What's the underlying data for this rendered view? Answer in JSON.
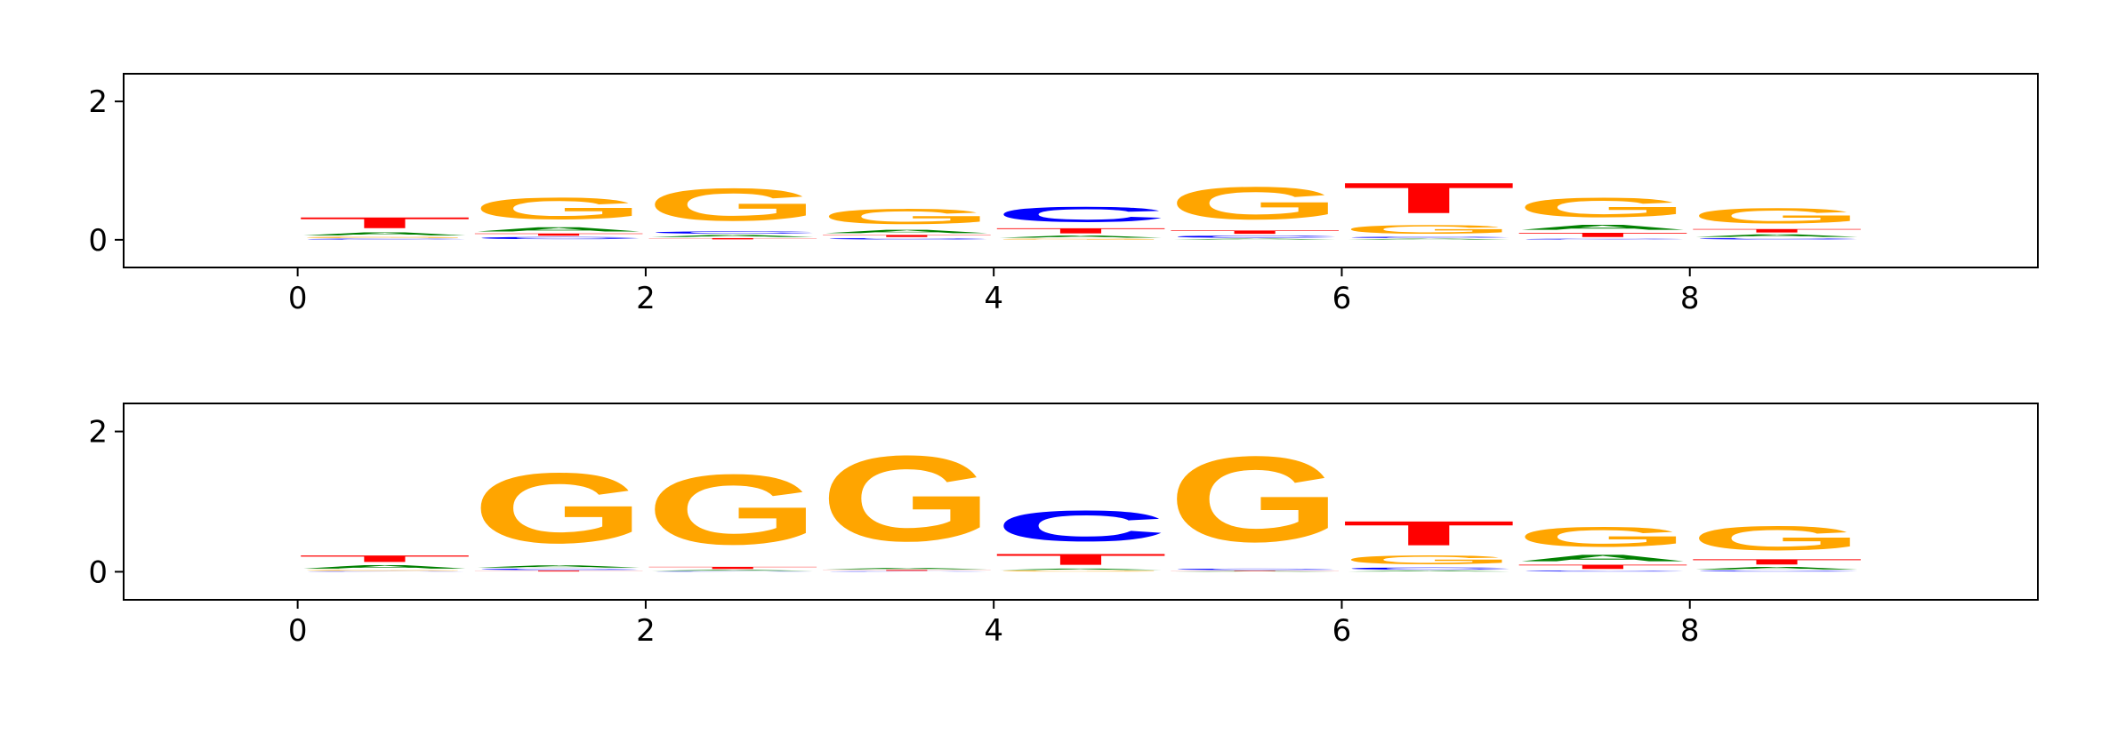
{
  "chart_data": [
    {
      "type": "logo",
      "x": [
        0,
        1,
        2,
        3,
        4,
        5,
        6,
        7,
        8
      ],
      "series": [
        {
          "name": "A",
          "color": "#008000",
          "values": [
            0.07,
            0.1,
            0.05,
            0.08,
            0.05,
            0.02,
            0.02,
            0.12,
            0.06
          ]
        },
        {
          "name": "C",
          "color": "#0000ff",
          "values": [
            0.02,
            0.05,
            0.05,
            0.03,
            0.35,
            0.05,
            0.03,
            0.02,
            0.03
          ]
        },
        {
          "name": "G",
          "color": "#ffa500",
          "values": [
            0.03,
            0.5,
            0.75,
            0.35,
            0.02,
            0.75,
            0.2,
            0.45,
            0.35
          ]
        },
        {
          "name": "T",
          "color": "#ff0000",
          "values": [
            0.25,
            0.05,
            0.03,
            0.05,
            0.12,
            0.08,
            0.7,
            0.1,
            0.08
          ]
        }
      ],
      "xlim": [
        -1,
        10
      ],
      "ylim": [
        -0.4,
        2.4
      ],
      "xticks": [
        0,
        2,
        4,
        6,
        8
      ],
      "yticks": [
        0,
        2
      ]
    },
    {
      "type": "logo",
      "x": [
        0,
        1,
        2,
        3,
        4,
        5,
        6,
        7,
        8
      ],
      "series": [
        {
          "name": "A",
          "color": "#008000",
          "values": [
            0.08,
            0.05,
            0.02,
            0.03,
            0.03,
            0.01,
            0.02,
            0.15,
            0.06
          ]
        },
        {
          "name": "C",
          "color": "#0000ff",
          "values": [
            0.01,
            0.03,
            0.01,
            0.01,
            0.7,
            0.03,
            0.05,
            0.02,
            0.02
          ]
        },
        {
          "name": "G",
          "color": "#ffa500",
          "values": [
            0.02,
            1.6,
            1.6,
            1.95,
            0.02,
            1.95,
            0.2,
            0.45,
            0.55
          ]
        },
        {
          "name": "T",
          "color": "#ff0000",
          "values": [
            0.15,
            0.02,
            0.05,
            0.02,
            0.25,
            0.01,
            0.55,
            0.1,
            0.12
          ]
        }
      ],
      "xlim": [
        -1,
        10
      ],
      "ylim": [
        -0.4,
        2.4
      ],
      "xticks": [
        0,
        2,
        4,
        6,
        8
      ],
      "yticks": [
        0,
        2
      ]
    }
  ]
}
